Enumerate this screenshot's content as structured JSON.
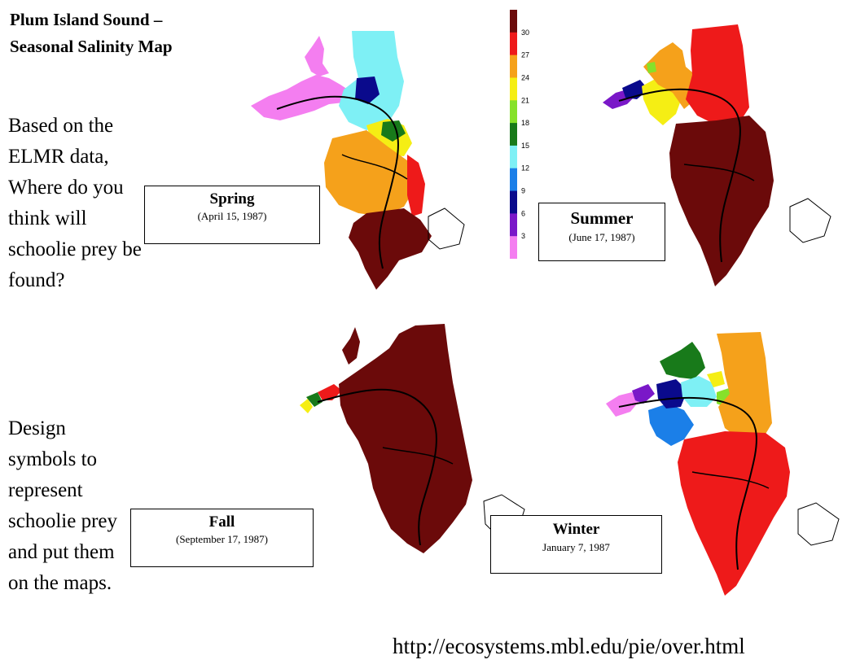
{
  "title": {
    "line1": "Plum Island Sound –",
    "line2": "Seasonal Salinity Map"
  },
  "question": "Based on the  ELMR data, Where do you think will schoolie prey be found?",
  "task": "Design symbols to represent schoolie prey and put them on the maps.",
  "url": "http://ecosystems.mbl.edu/pie/over.html",
  "legend": {
    "labels": [
      "30",
      "27",
      "24",
      "21",
      "18",
      "15",
      "12",
      "9",
      "6",
      "3"
    ],
    "colors": [
      "#6b0a0a",
      "#ee1a1a",
      "#f5a11b",
      "#f5ee14",
      "#86e12a",
      "#187a1a",
      "#7ef0f5",
      "#1b7fe8",
      "#0a0a8c",
      "#7a18c8",
      "#f47ef0"
    ]
  },
  "maps": {
    "spring": {
      "name": "Spring",
      "date": "(April 15, 1987)"
    },
    "summer": {
      "name": "Summer",
      "date": "(June 17, 1987)"
    },
    "fall": {
      "name": "Fall",
      "date": "(September 17, 1987)"
    },
    "winter": {
      "name": "Winter",
      "date": "January 7, 1987"
    }
  }
}
